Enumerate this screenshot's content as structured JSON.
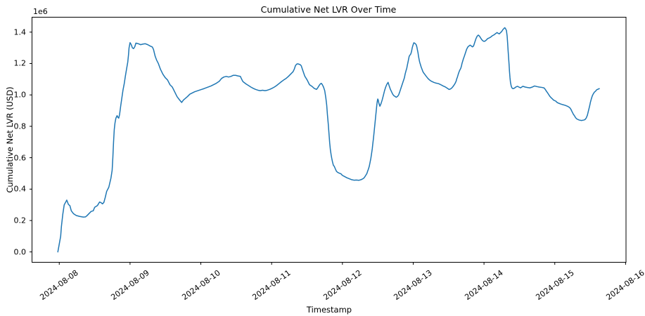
{
  "figure": {
    "title": "Cumulative Net LVR Over Time",
    "xlabel": "Timestamp",
    "ylabel": "Cumulative Net LVR (USD)",
    "offset_text": "1e6"
  },
  "chart_data": {
    "type": "line",
    "title": "Cumulative Net LVR Over Time",
    "xlabel": "Timestamp",
    "ylabel": "Cumulative Net LVR (USD)",
    "y_offset_label": "1e6",
    "y_unit": "millions of USD",
    "x_unit": "days since 2024-08-08",
    "line_color": "#1f77b4",
    "grid": false,
    "legend": null,
    "x_tick_days": [
      0,
      1,
      2,
      3,
      4,
      5,
      6,
      7,
      8
    ],
    "x_tick_labels": [
      "2024-08-08",
      "2024-08-09",
      "2024-08-10",
      "2024-08-11",
      "2024-08-12",
      "2024-08-13",
      "2024-08-14",
      "2024-08-15",
      "2024-08-16"
    ],
    "y_ticks": [
      0.0,
      0.2,
      0.4,
      0.6,
      0.8,
      1.0,
      1.2,
      1.4
    ],
    "xlim_days": [
      -0.385,
      8.006
    ],
    "ylim_millions": [
      -0.066,
      1.495
    ],
    "points": [
      [
        -0.02,
        0.0
      ],
      [
        0.0,
        0.05
      ],
      [
        0.02,
        0.1
      ],
      [
        0.03,
        0.16
      ],
      [
        0.05,
        0.24
      ],
      [
        0.07,
        0.3
      ],
      [
        0.106,
        0.33
      ],
      [
        0.13,
        0.302
      ],
      [
        0.15,
        0.295
      ],
      [
        0.17,
        0.262
      ],
      [
        0.2,
        0.244
      ],
      [
        0.24,
        0.232
      ],
      [
        0.29,
        0.226
      ],
      [
        0.34,
        0.222
      ],
      [
        0.37,
        0.223
      ],
      [
        0.39,
        0.23
      ],
      [
        0.42,
        0.244
      ],
      [
        0.45,
        0.258
      ],
      [
        0.48,
        0.262
      ],
      [
        0.5,
        0.284
      ],
      [
        0.54,
        0.296
      ],
      [
        0.57,
        0.318
      ],
      [
        0.59,
        0.314
      ],
      [
        0.61,
        0.306
      ],
      [
        0.63,
        0.315
      ],
      [
        0.65,
        0.348
      ],
      [
        0.67,
        0.386
      ],
      [
        0.7,
        0.412
      ],
      [
        0.73,
        0.47
      ],
      [
        0.747,
        0.52
      ],
      [
        0.757,
        0.6
      ],
      [
        0.767,
        0.7
      ],
      [
        0.777,
        0.78
      ],
      [
        0.787,
        0.82
      ],
      [
        0.8,
        0.852
      ],
      [
        0.817,
        0.868
      ],
      [
        0.827,
        0.858
      ],
      [
        0.84,
        0.852
      ],
      [
        0.852,
        0.875
      ],
      [
        0.868,
        0.93
      ],
      [
        0.884,
        0.98
      ],
      [
        0.9,
        1.03
      ],
      [
        0.918,
        1.072
      ],
      [
        0.934,
        1.12
      ],
      [
        0.95,
        1.163
      ],
      [
        0.968,
        1.21
      ],
      [
        0.978,
        1.255
      ],
      [
        0.986,
        1.3
      ],
      [
        1.0,
        1.333
      ],
      [
        1.017,
        1.32
      ],
      [
        1.033,
        1.3
      ],
      [
        1.05,
        1.295
      ],
      [
        1.067,
        1.307
      ],
      [
        1.083,
        1.33
      ],
      [
        1.117,
        1.326
      ],
      [
        1.15,
        1.32
      ],
      [
        1.182,
        1.324
      ],
      [
        1.216,
        1.326
      ],
      [
        1.25,
        1.32
      ],
      [
        1.282,
        1.312
      ],
      [
        1.315,
        1.305
      ],
      [
        1.331,
        1.29
      ],
      [
        1.355,
        1.246
      ],
      [
        1.375,
        1.222
      ],
      [
        1.4,
        1.2
      ],
      [
        1.43,
        1.163
      ],
      [
        1.464,
        1.132
      ],
      [
        1.497,
        1.11
      ],
      [
        1.53,
        1.095
      ],
      [
        1.564,
        1.065
      ],
      [
        1.597,
        1.05
      ],
      [
        1.63,
        1.02
      ],
      [
        1.663,
        0.99
      ],
      [
        1.696,
        0.97
      ],
      [
        1.729,
        0.952
      ],
      [
        1.753,
        0.967
      ],
      [
        1.779,
        0.977
      ],
      [
        1.812,
        0.99
      ],
      [
        1.845,
        1.005
      ],
      [
        1.912,
        1.02
      ],
      [
        1.978,
        1.03
      ],
      [
        2.044,
        1.04
      ],
      [
        2.143,
        1.057
      ],
      [
        2.21,
        1.072
      ],
      [
        2.26,
        1.087
      ],
      [
        2.293,
        1.105
      ],
      [
        2.325,
        1.114
      ],
      [
        2.359,
        1.118
      ],
      [
        2.392,
        1.114
      ],
      [
        2.425,
        1.118
      ],
      [
        2.459,
        1.125
      ],
      [
        2.491,
        1.125
      ],
      [
        2.524,
        1.121
      ],
      [
        2.558,
        1.118
      ],
      [
        2.574,
        1.103
      ],
      [
        2.591,
        1.087
      ],
      [
        2.608,
        1.08
      ],
      [
        2.641,
        1.069
      ],
      [
        2.673,
        1.06
      ],
      [
        2.707,
        1.05
      ],
      [
        2.74,
        1.042
      ],
      [
        2.773,
        1.035
      ],
      [
        2.807,
        1.03
      ],
      [
        2.839,
        1.027
      ],
      [
        2.872,
        1.03
      ],
      [
        2.906,
        1.027
      ],
      [
        2.939,
        1.03
      ],
      [
        2.972,
        1.035
      ],
      [
        3.005,
        1.042
      ],
      [
        3.038,
        1.05
      ],
      [
        3.071,
        1.06
      ],
      [
        3.104,
        1.072
      ],
      [
        3.137,
        1.084
      ],
      [
        3.17,
        1.095
      ],
      [
        3.204,
        1.105
      ],
      [
        3.237,
        1.118
      ],
      [
        3.27,
        1.133
      ],
      [
        3.303,
        1.148
      ],
      [
        3.319,
        1.163
      ],
      [
        3.336,
        1.186
      ],
      [
        3.353,
        1.196
      ],
      [
        3.369,
        1.198
      ],
      [
        3.403,
        1.193
      ],
      [
        3.419,
        1.185
      ],
      [
        3.435,
        1.163
      ],
      [
        3.468,
        1.12
      ],
      [
        3.502,
        1.095
      ],
      [
        3.535,
        1.065
      ],
      [
        3.568,
        1.055
      ],
      [
        3.601,
        1.042
      ],
      [
        3.634,
        1.035
      ],
      [
        3.651,
        1.045
      ],
      [
        3.667,
        1.057
      ],
      [
        3.684,
        1.068
      ],
      [
        3.701,
        1.074
      ],
      [
        3.717,
        1.065
      ],
      [
        3.733,
        1.05
      ],
      [
        3.75,
        1.027
      ],
      [
        3.766,
        0.98
      ],
      [
        3.778,
        0.935
      ],
      [
        3.788,
        0.875
      ],
      [
        3.8,
        0.815
      ],
      [
        3.81,
        0.755
      ],
      [
        3.82,
        0.695
      ],
      [
        3.83,
        0.65
      ],
      [
        3.84,
        0.62
      ],
      [
        3.849,
        0.597
      ],
      [
        3.859,
        0.575
      ],
      [
        3.872,
        0.552
      ],
      [
        3.885,
        0.545
      ],
      [
        3.899,
        0.53
      ],
      [
        3.915,
        0.514
      ],
      [
        3.932,
        0.507
      ],
      [
        3.949,
        0.503
      ],
      [
        3.965,
        0.5
      ],
      [
        3.981,
        0.497
      ],
      [
        3.998,
        0.488
      ],
      [
        4.031,
        0.48
      ],
      [
        4.064,
        0.472
      ],
      [
        4.098,
        0.466
      ],
      [
        4.131,
        0.46
      ],
      [
        4.163,
        0.457
      ],
      [
        4.197,
        0.458
      ],
      [
        4.23,
        0.456
      ],
      [
        4.263,
        0.46
      ],
      [
        4.297,
        0.468
      ],
      [
        4.313,
        0.476
      ],
      [
        4.33,
        0.488
      ],
      [
        4.346,
        0.5
      ],
      [
        4.356,
        0.514
      ],
      [
        4.369,
        0.53
      ],
      [
        4.379,
        0.545
      ],
      [
        4.389,
        0.567
      ],
      [
        4.402,
        0.597
      ],
      [
        4.412,
        0.627
      ],
      [
        4.422,
        0.658
      ],
      [
        4.429,
        0.688
      ],
      [
        4.439,
        0.725
      ],
      [
        4.449,
        0.77
      ],
      [
        4.459,
        0.815
      ],
      [
        4.469,
        0.86
      ],
      [
        4.479,
        0.905
      ],
      [
        4.486,
        0.937
      ],
      [
        4.492,
        0.958
      ],
      [
        4.499,
        0.974
      ],
      [
        4.506,
        0.967
      ],
      [
        4.512,
        0.952
      ],
      [
        4.529,
        0.928
      ],
      [
        4.545,
        0.944
      ],
      [
        4.561,
        0.967
      ],
      [
        4.578,
        0.996
      ],
      [
        4.595,
        1.027
      ],
      [
        4.611,
        1.05
      ],
      [
        4.628,
        1.068
      ],
      [
        4.645,
        1.08
      ],
      [
        4.661,
        1.057
      ],
      [
        4.678,
        1.035
      ],
      [
        4.694,
        1.02
      ],
      [
        4.71,
        1.005
      ],
      [
        4.727,
        0.995
      ],
      [
        4.744,
        0.99
      ],
      [
        4.76,
        0.985
      ],
      [
        4.777,
        0.99
      ],
      [
        4.794,
        1.0
      ],
      [
        4.81,
        1.02
      ],
      [
        4.826,
        1.042
      ],
      [
        4.843,
        1.065
      ],
      [
        4.859,
        1.087
      ],
      [
        4.876,
        1.11
      ],
      [
        4.886,
        1.133
      ],
      [
        4.899,
        1.155
      ],
      [
        4.909,
        1.17
      ],
      [
        4.919,
        1.193
      ],
      [
        4.926,
        1.208
      ],
      [
        4.943,
        1.246
      ],
      [
        4.953,
        1.253
      ],
      [
        4.966,
        1.261
      ],
      [
        4.976,
        1.276
      ],
      [
        4.986,
        1.3
      ],
      [
        4.999,
        1.32
      ],
      [
        5.009,
        1.332
      ],
      [
        5.026,
        1.328
      ],
      [
        5.042,
        1.32
      ],
      [
        5.052,
        1.305
      ],
      [
        5.058,
        1.29
      ],
      [
        5.068,
        1.268
      ],
      [
        5.075,
        1.246
      ],
      [
        5.085,
        1.222
      ],
      [
        5.092,
        1.208
      ],
      [
        5.102,
        1.193
      ],
      [
        5.112,
        1.178
      ],
      [
        5.125,
        1.163
      ],
      [
        5.135,
        1.15
      ],
      [
        5.148,
        1.14
      ],
      [
        5.165,
        1.13
      ],
      [
        5.185,
        1.118
      ],
      [
        5.208,
        1.105
      ],
      [
        5.231,
        1.095
      ],
      [
        5.257,
        1.087
      ],
      [
        5.291,
        1.08
      ],
      [
        5.324,
        1.075
      ],
      [
        5.357,
        1.072
      ],
      [
        5.39,
        1.065
      ],
      [
        5.423,
        1.057
      ],
      [
        5.456,
        1.05
      ],
      [
        5.483,
        1.042
      ],
      [
        5.506,
        1.035
      ],
      [
        5.523,
        1.037
      ],
      [
        5.54,
        1.042
      ],
      [
        5.556,
        1.05
      ],
      [
        5.573,
        1.06
      ],
      [
        5.59,
        1.072
      ],
      [
        5.606,
        1.087
      ],
      [
        5.615,
        1.103
      ],
      [
        5.622,
        1.11
      ],
      [
        5.632,
        1.125
      ],
      [
        5.642,
        1.14
      ],
      [
        5.655,
        1.155
      ],
      [
        5.672,
        1.17
      ],
      [
        5.682,
        1.185
      ],
      [
        5.689,
        1.2
      ],
      [
        5.699,
        1.215
      ],
      [
        5.709,
        1.23
      ],
      [
        5.722,
        1.246
      ],
      [
        5.738,
        1.268
      ],
      [
        5.754,
        1.29
      ],
      [
        5.771,
        1.305
      ],
      [
        5.788,
        1.312
      ],
      [
        5.804,
        1.317
      ],
      [
        5.82,
        1.312
      ],
      [
        5.837,
        1.306
      ],
      [
        5.853,
        1.312
      ],
      [
        5.87,
        1.336
      ],
      [
        5.887,
        1.359
      ],
      [
        5.903,
        1.374
      ],
      [
        5.92,
        1.381
      ],
      [
        5.937,
        1.374
      ],
      [
        5.953,
        1.362
      ],
      [
        5.97,
        1.351
      ],
      [
        5.986,
        1.344
      ],
      [
        6.002,
        1.341
      ],
      [
        6.019,
        1.344
      ],
      [
        6.036,
        1.351
      ],
      [
        6.052,
        1.359
      ],
      [
        6.069,
        1.362
      ],
      [
        6.086,
        1.366
      ],
      [
        6.102,
        1.371
      ],
      [
        6.118,
        1.377
      ],
      [
        6.135,
        1.381
      ],
      [
        6.151,
        1.386
      ],
      [
        6.168,
        1.392
      ],
      [
        6.185,
        1.397
      ],
      [
        6.201,
        1.392
      ],
      [
        6.217,
        1.389
      ],
      [
        6.234,
        1.397
      ],
      [
        6.25,
        1.404
      ],
      [
        6.267,
        1.416
      ],
      [
        6.284,
        1.424
      ],
      [
        6.294,
        1.428
      ],
      [
        6.307,
        1.42
      ],
      [
        6.317,
        1.41
      ],
      [
        6.327,
        1.374
      ],
      [
        6.334,
        1.33
      ],
      [
        6.34,
        1.285
      ],
      [
        6.347,
        1.24
      ],
      [
        6.354,
        1.195
      ],
      [
        6.36,
        1.15
      ],
      [
        6.367,
        1.11
      ],
      [
        6.374,
        1.08
      ],
      [
        6.384,
        1.057
      ],
      [
        6.394,
        1.045
      ],
      [
        6.407,
        1.04
      ],
      [
        6.426,
        1.042
      ],
      [
        6.449,
        1.05
      ],
      [
        6.473,
        1.055
      ],
      [
        6.493,
        1.05
      ],
      [
        6.516,
        1.045
      ],
      [
        6.549,
        1.055
      ],
      [
        6.583,
        1.05
      ],
      [
        6.615,
        1.047
      ],
      [
        6.648,
        1.045
      ],
      [
        6.682,
        1.05
      ],
      [
        6.715,
        1.057
      ],
      [
        6.748,
        1.053
      ],
      [
        6.781,
        1.05
      ],
      [
        6.814,
        1.048
      ],
      [
        6.847,
        1.045
      ],
      [
        6.864,
        1.036
      ],
      [
        6.881,
        1.024
      ],
      [
        6.897,
        1.014
      ],
      [
        6.913,
        1.003
      ],
      [
        6.93,
        0.991
      ],
      [
        6.946,
        0.983
      ],
      [
        6.963,
        0.976
      ],
      [
        6.98,
        0.968
      ],
      [
        6.996,
        0.964
      ],
      [
        7.013,
        0.961
      ],
      [
        7.03,
        0.953
      ],
      [
        7.045,
        0.949
      ],
      [
        7.062,
        0.946
      ],
      [
        7.079,
        0.943
      ],
      [
        7.112,
        0.938
      ],
      [
        7.145,
        0.934
      ],
      [
        7.179,
        0.928
      ],
      [
        7.211,
        0.919
      ],
      [
        7.228,
        0.908
      ],
      [
        7.244,
        0.893
      ],
      [
        7.261,
        0.878
      ],
      [
        7.278,
        0.867
      ],
      [
        7.294,
        0.855
      ],
      [
        7.311,
        0.847
      ],
      [
        7.344,
        0.84
      ],
      [
        7.377,
        0.837
      ],
      [
        7.41,
        0.84
      ],
      [
        7.427,
        0.843
      ],
      [
        7.443,
        0.852
      ],
      [
        7.46,
        0.87
      ],
      [
        7.476,
        0.9
      ],
      [
        7.493,
        0.931
      ],
      [
        7.503,
        0.953
      ],
      [
        7.517,
        0.976
      ],
      [
        7.53,
        0.994
      ],
      [
        7.543,
        1.006
      ],
      [
        7.56,
        1.018
      ],
      [
        7.576,
        1.024
      ],
      [
        7.592,
        1.033
      ],
      [
        7.609,
        1.036
      ],
      [
        7.629,
        1.04
      ]
    ]
  }
}
